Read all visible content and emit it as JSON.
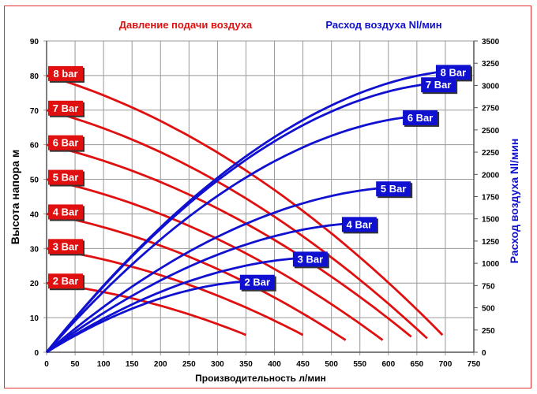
{
  "chart_data": {
    "type": "line",
    "title_left": "Давление подачи воздуха",
    "title_right": "Расход воздуха Nl/мин",
    "xlabel": "Производительность л/мин",
    "ylabel_left": "Высота напора м",
    "ylabel_right": "Расход воздуха Nl/мин",
    "xlim": [
      0,
      750
    ],
    "ylim_left": [
      0,
      90
    ],
    "ylim_right": [
      0,
      3500
    ],
    "x_ticks": [
      0,
      50,
      100,
      150,
      200,
      250,
      300,
      350,
      400,
      450,
      500,
      550,
      600,
      650,
      700,
      750
    ],
    "y_left_ticks": [
      0,
      10,
      20,
      30,
      40,
      50,
      60,
      70,
      80,
      90
    ],
    "y_right_ticks": [
      0,
      250,
      500,
      750,
      1000,
      1250,
      1500,
      1750,
      2000,
      2250,
      2500,
      2750,
      3000,
      3250,
      3500
    ],
    "grid": true,
    "colors": {
      "pressure": "#e01010",
      "airflow": "#1010d0"
    },
    "pressure_series": [
      {
        "name": "8 bar",
        "start": [
          0,
          80
        ],
        "end": [
          695,
          5
        ]
      },
      {
        "name": "7 Bar",
        "start": [
          0,
          70
        ],
        "end": [
          668,
          4
        ]
      },
      {
        "name": "6 Bar",
        "start": [
          0,
          60
        ],
        "end": [
          640,
          4.5
        ]
      },
      {
        "name": "5 Bar",
        "start": [
          0,
          50
        ],
        "end": [
          590,
          3.5
        ]
      },
      {
        "name": "4 Bar",
        "start": [
          0,
          40
        ],
        "end": [
          525,
          3.5
        ]
      },
      {
        "name": "3 Bar",
        "start": [
          0,
          30
        ],
        "end": [
          450,
          5
        ]
      },
      {
        "name": "2 Bar",
        "start": [
          0,
          20
        ],
        "end": [
          350,
          5
        ]
      }
    ],
    "airflow_series": [
      {
        "name": "8 Bar",
        "start": [
          0,
          0
        ],
        "end": [
          700,
          3160
        ]
      },
      {
        "name": "7 Bar",
        "start": [
          0,
          0
        ],
        "end": [
          674,
          3020
        ]
      },
      {
        "name": "6 Bar",
        "start": [
          0,
          0
        ],
        "end": [
          642,
          2650
        ]
      },
      {
        "name": "5 Bar",
        "start": [
          0,
          0
        ],
        "end": [
          595,
          1850
        ]
      },
      {
        "name": "4 Bar",
        "start": [
          0,
          0
        ],
        "end": [
          535,
          1450
        ]
      },
      {
        "name": "3 Bar",
        "start": [
          0,
          0
        ],
        "end": [
          449,
          1060
        ]
      },
      {
        "name": "2 Bar",
        "start": [
          0,
          0
        ],
        "end": [
          356,
          800
        ]
      }
    ]
  }
}
